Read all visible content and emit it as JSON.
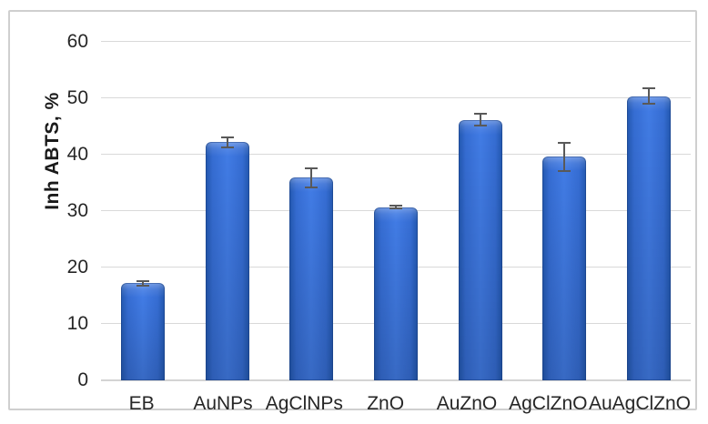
{
  "chart_data": {
    "type": "bar",
    "title": "",
    "xlabel": "",
    "ylabel": "Inh ABTS, %",
    "categories": [
      "EB",
      "AuNPs",
      "AgClNPs",
      "ZnO",
      "AuZnO",
      "AgClZnO",
      "AuAgClZnO"
    ],
    "values": [
      17.2,
      42.2,
      35.9,
      30.7,
      46.2,
      39.6,
      50.4
    ],
    "error_bars": [
      0.6,
      1.1,
      1.8,
      0.4,
      1.2,
      2.6,
      1.5
    ],
    "yticks": [
      0,
      10,
      20,
      30,
      40,
      50,
      60
    ],
    "ylim": [
      0,
      60
    ],
    "grid": true,
    "legend": "none",
    "colors": {
      "bar_fill": "#3a73d8",
      "bar_edge": "#2257ae",
      "error_bar": "#595959",
      "gridline": "#d9d9d9",
      "frame_border": "#cfcfcf",
      "text": "#262626"
    }
  }
}
